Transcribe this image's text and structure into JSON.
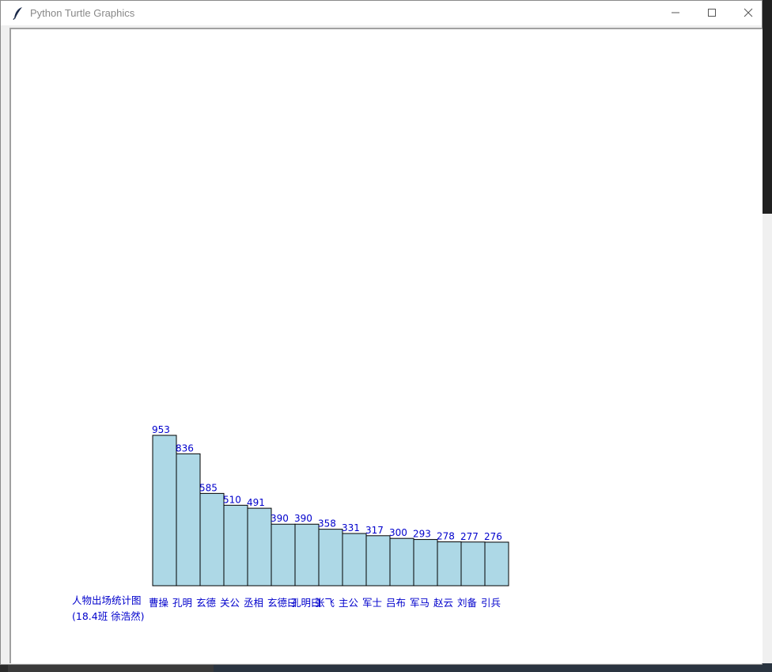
{
  "window": {
    "title": "Python Turtle Graphics",
    "icon": "feather-icon",
    "controls": [
      "minimize-icon",
      "maximize-icon",
      "close-icon"
    ]
  },
  "colors": {
    "bar_fill": "#add8e6",
    "bar_stroke": "#000000",
    "label_color": "#0000cc"
  },
  "chart_data": {
    "type": "bar",
    "title": "人物出场统计图",
    "subtitle": "(18.4班 徐浩然)",
    "categories": [
      "曹操",
      "孔明",
      "玄德",
      "关公",
      "丞相",
      "玄德曰",
      "孔明曰",
      "张飞",
      "主公",
      "军士",
      "吕布",
      "军马",
      "赵云",
      "刘备",
      "引兵"
    ],
    "values": [
      953,
      836,
      585,
      510,
      491,
      390,
      390,
      358,
      331,
      317,
      300,
      293,
      278,
      277,
      276
    ],
    "xlabel": "",
    "ylabel": "",
    "ylim": [
      0,
      953
    ],
    "grid": false
  }
}
